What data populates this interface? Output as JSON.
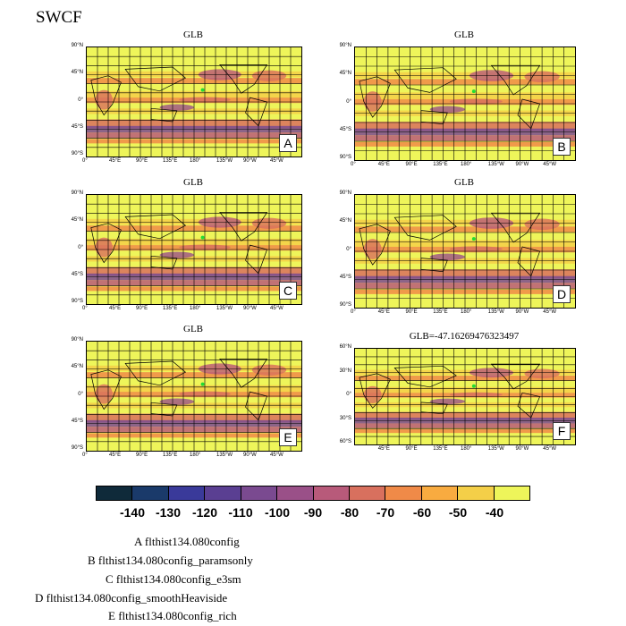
{
  "title": "SWCF",
  "panels": [
    {
      "letter": "A",
      "title": "GLB",
      "lat_ticks": [
        "90°N",
        "45°N",
        "0°",
        "45°S",
        "90°S"
      ],
      "lon_ticks": [
        "0°",
        "45°E",
        "90°E",
        "135°E",
        "180°",
        "135°W",
        "90°W",
        "45°W"
      ]
    },
    {
      "letter": "B",
      "title": "GLB",
      "lat_ticks": [
        "90°N",
        "45°N",
        "0°",
        "45°S",
        "90°S"
      ],
      "lon_ticks": [
        "0°",
        "45°E",
        "90°E",
        "135°E",
        "180°",
        "135°W",
        "90°W",
        "45°W"
      ]
    },
    {
      "letter": "C",
      "title": "GLB",
      "lat_ticks": [
        "90°N",
        "45°N",
        "0°",
        "45°S",
        "90°S"
      ],
      "lon_ticks": [
        "0°",
        "45°E",
        "90°E",
        "135°E",
        "180°",
        "135°W",
        "90°W",
        "45°W"
      ]
    },
    {
      "letter": "D",
      "title": "GLB",
      "lat_ticks": [
        "90°N",
        "45°N",
        "0°",
        "45°S",
        "90°S"
      ],
      "lon_ticks": [
        "0°",
        "45°E",
        "90°E",
        "135°E",
        "180°",
        "135°W",
        "90°W",
        "45°W"
      ]
    },
    {
      "letter": "E",
      "title": "GLB",
      "lat_ticks": [
        "90°N",
        "45°N",
        "0°",
        "45°S",
        "90°S"
      ],
      "lon_ticks": [
        "0°",
        "45°E",
        "90°E",
        "135°E",
        "180°",
        "135°W",
        "90°W",
        "45°W"
      ]
    },
    {
      "letter": "F",
      "title": "GLB=-47.16269476323497",
      "lat_ticks": [
        "60°N",
        "30°N",
        "0°",
        "30°S",
        "60°S"
      ],
      "lon_ticks": [
        "45°E",
        "90°E",
        "135°E",
        "180°",
        "135°W",
        "90°W",
        "45°W"
      ]
    }
  ],
  "colorbar": {
    "labels": [
      "-140",
      "-130",
      "-120",
      "-110",
      "-100",
      "-90",
      "-80",
      "-70",
      "-60",
      "-50",
      "-40"
    ],
    "colors": [
      "#0f2a3a",
      "#1a3a6a",
      "#3a3a9a",
      "#5a3f92",
      "#7a4a90",
      "#9a5088",
      "#b85a7a",
      "#d8705e",
      "#f08a48",
      "#f8ab40",
      "#f4cf48",
      "#eef55a"
    ]
  },
  "legend": [
    "A  flthist134.080config",
    "B  flthist134.080config_paramsonly",
    "C  flthist134.080config_e3sm",
    "D  flthist134.080config_smoothHeaviside",
    "E  flthist134.080config_rich"
  ]
}
